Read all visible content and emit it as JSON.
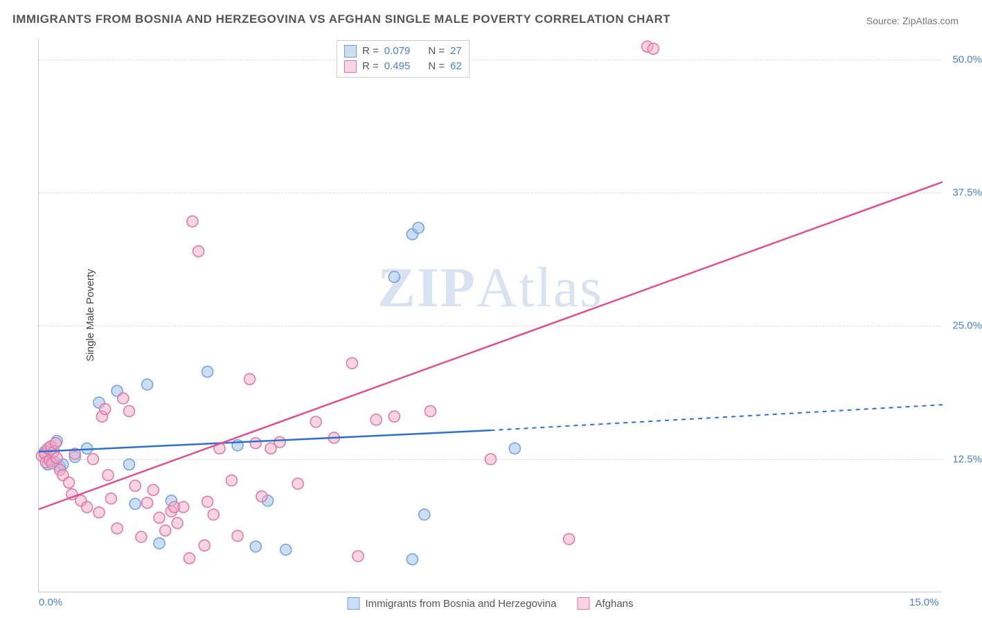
{
  "title": "IMMIGRANTS FROM BOSNIA AND HERZEGOVINA VS AFGHAN SINGLE MALE POVERTY CORRELATION CHART",
  "source": "Source: ZipAtlas.com",
  "ylabel": "Single Male Poverty",
  "watermark_bold": "ZIP",
  "watermark_rest": "Atlas",
  "chart": {
    "type": "scatter",
    "xlim": [
      0,
      15
    ],
    "ylim": [
      0,
      52
    ],
    "xticks": [
      {
        "v": 0,
        "label": "0.0%"
      },
      {
        "v": 15,
        "label": "15.0%"
      }
    ],
    "yticks": [
      {
        "v": 12.5,
        "label": "12.5%"
      },
      {
        "v": 25.0,
        "label": "25.0%"
      },
      {
        "v": 37.5,
        "label": "37.5%"
      },
      {
        "v": 50.0,
        "label": "50.0%"
      }
    ],
    "background_color": "#ffffff",
    "grid_color": "#dddddd",
    "marker_radius": 8,
    "series": [
      {
        "id": "bosnia",
        "label": "Immigrants from Bosnia and Herzegovina",
        "stroke": "#6f9fe0",
        "fill": "rgba(160,195,235,0.55)",
        "line_color": "#2f6fd0",
        "R": "0.079",
        "N": "27",
        "points": [
          [
            0.1,
            13.2
          ],
          [
            0.15,
            12.0
          ],
          [
            0.2,
            13.4
          ],
          [
            0.25,
            12.3
          ],
          [
            0.3,
            14.2
          ],
          [
            0.35,
            11.8
          ],
          [
            0.4,
            12.0
          ],
          [
            0.6,
            12.7
          ],
          [
            0.8,
            13.5
          ],
          [
            1.0,
            17.8
          ],
          [
            1.3,
            18.9
          ],
          [
            1.5,
            12.0
          ],
          [
            1.6,
            8.3
          ],
          [
            1.8,
            19.5
          ],
          [
            2.0,
            4.6
          ],
          [
            2.2,
            8.6
          ],
          [
            2.8,
            20.7
          ],
          [
            3.3,
            13.8
          ],
          [
            3.6,
            4.3
          ],
          [
            3.8,
            8.6
          ],
          [
            4.1,
            4.0
          ],
          [
            6.2,
            33.6
          ],
          [
            5.9,
            29.6
          ],
          [
            6.2,
            3.1
          ],
          [
            6.4,
            7.3
          ],
          [
            6.3,
            34.2
          ],
          [
            7.9,
            13.5
          ]
        ],
        "regression": {
          "x0": 0,
          "y0": 13.2,
          "x1": 7.5,
          "y1": 15.2,
          "x2": 15,
          "y2": 17.6,
          "dash_after": 7.5
        }
      },
      {
        "id": "afghans",
        "label": "Afghans",
        "stroke": "#e275a1",
        "fill": "rgba(240,170,200,0.50)",
        "line_color": "#e05090",
        "R": "0.495",
        "N": "62",
        "points": [
          [
            0.05,
            12.8
          ],
          [
            0.1,
            13.0
          ],
          [
            0.12,
            12.2
          ],
          [
            0.15,
            13.5
          ],
          [
            0.18,
            12.4
          ],
          [
            0.2,
            13.7
          ],
          [
            0.22,
            12.1
          ],
          [
            0.25,
            13.2
          ],
          [
            0.28,
            14.0
          ],
          [
            0.3,
            12.6
          ],
          [
            0.35,
            11.5
          ],
          [
            0.4,
            11.0
          ],
          [
            0.5,
            10.3
          ],
          [
            0.55,
            9.2
          ],
          [
            0.6,
            13.0
          ],
          [
            0.7,
            8.6
          ],
          [
            0.8,
            8.0
          ],
          [
            0.9,
            12.5
          ],
          [
            1.0,
            7.5
          ],
          [
            1.05,
            16.5
          ],
          [
            1.1,
            17.2
          ],
          [
            1.15,
            11.0
          ],
          [
            1.2,
            8.8
          ],
          [
            1.3,
            6.0
          ],
          [
            1.4,
            18.2
          ],
          [
            1.5,
            17.0
          ],
          [
            1.6,
            10.0
          ],
          [
            1.7,
            5.2
          ],
          [
            1.8,
            8.4
          ],
          [
            1.9,
            9.6
          ],
          [
            2.0,
            7.0
          ],
          [
            2.1,
            5.8
          ],
          [
            2.2,
            7.6
          ],
          [
            2.25,
            8.0
          ],
          [
            2.3,
            6.5
          ],
          [
            2.4,
            8.0
          ],
          [
            2.5,
            3.2
          ],
          [
            2.55,
            34.8
          ],
          [
            2.65,
            32.0
          ],
          [
            2.75,
            4.4
          ],
          [
            2.8,
            8.5
          ],
          [
            2.9,
            7.3
          ],
          [
            3.0,
            13.5
          ],
          [
            3.2,
            10.5
          ],
          [
            3.3,
            5.3
          ],
          [
            3.5,
            20.0
          ],
          [
            3.6,
            14.0
          ],
          [
            3.7,
            9.0
          ],
          [
            3.85,
            13.5
          ],
          [
            4.0,
            14.1
          ],
          [
            4.3,
            10.2
          ],
          [
            4.6,
            16.0
          ],
          [
            4.9,
            14.5
          ],
          [
            5.2,
            21.5
          ],
          [
            5.3,
            3.4
          ],
          [
            5.6,
            16.2
          ],
          [
            5.9,
            16.5
          ],
          [
            6.5,
            17.0
          ],
          [
            7.5,
            12.5
          ],
          [
            8.8,
            5.0
          ],
          [
            10.1,
            51.2
          ],
          [
            10.2,
            51.0
          ]
        ],
        "regression": {
          "x0": 0,
          "y0": 7.8,
          "x1": 15,
          "y1": 38.5
        }
      }
    ]
  },
  "legend_top_label_R": "R =",
  "legend_top_label_N": "N ="
}
